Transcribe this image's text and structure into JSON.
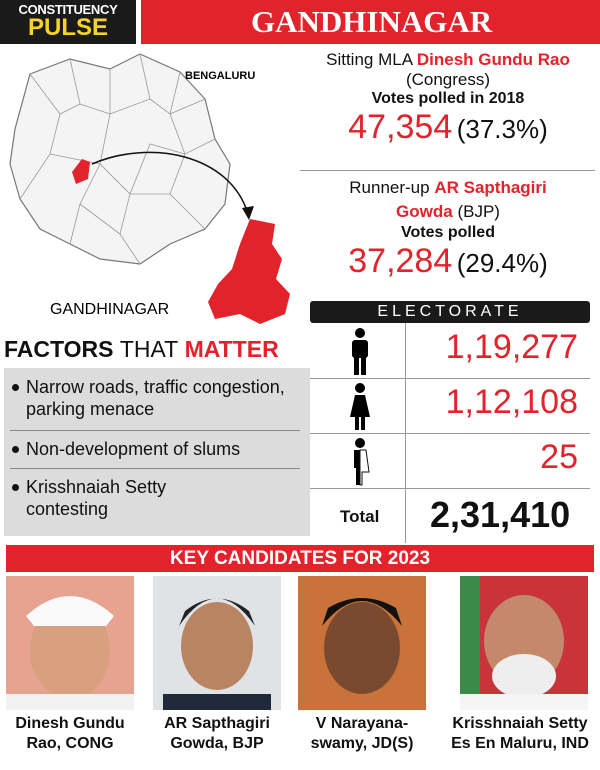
{
  "badge": {
    "line1": "CONSTITUENCY",
    "line2": "PULSE"
  },
  "header": {
    "title": "GANDHINAGAR"
  },
  "map": {
    "city_label": "BENGALURU",
    "area_label": "GANDHINAGAR"
  },
  "sitting": {
    "prefix": "Sitting MLA",
    "name": "Dinesh Gundu Rao",
    "party": "(Congress)",
    "votes_label": "Votes polled in 2018",
    "votes": "47,354",
    "share": "(37.3%)"
  },
  "runner_up": {
    "prefix": "Runner-up",
    "name": "AR Sapthagiri Gowda",
    "party": "(BJP)",
    "votes_label": "Votes polled",
    "votes": "37,284",
    "share": "(29.4%)"
  },
  "electorate": {
    "title": "ELECTORATE",
    "rows": [
      "1,19,277",
      "1,12,108",
      "25"
    ],
    "total_label": "Total",
    "total": "2,31,410"
  },
  "factors": {
    "title_1": "FACTORS",
    "title_2": "THAT",
    "title_3": "MATTER",
    "items": [
      "Narrow roads, traffic congestion, parking menace",
      "Non-development of slums",
      "Krisshnaiah Setty contesting"
    ]
  },
  "candidates": {
    "title": "KEY CANDIDATES FOR 2023",
    "list": [
      {
        "lines": [
          "Dinesh Gundu",
          "Rao, CONG"
        ]
      },
      {
        "lines": [
          "AR Sapthagiri",
          "Gowda, BJP"
        ]
      },
      {
        "lines": [
          "V Narayana-",
          "swamy, JD(S)"
        ]
      },
      {
        "lines": [
          "Krisshnaiah Setty",
          "Es En Maluru, IND"
        ]
      }
    ]
  }
}
